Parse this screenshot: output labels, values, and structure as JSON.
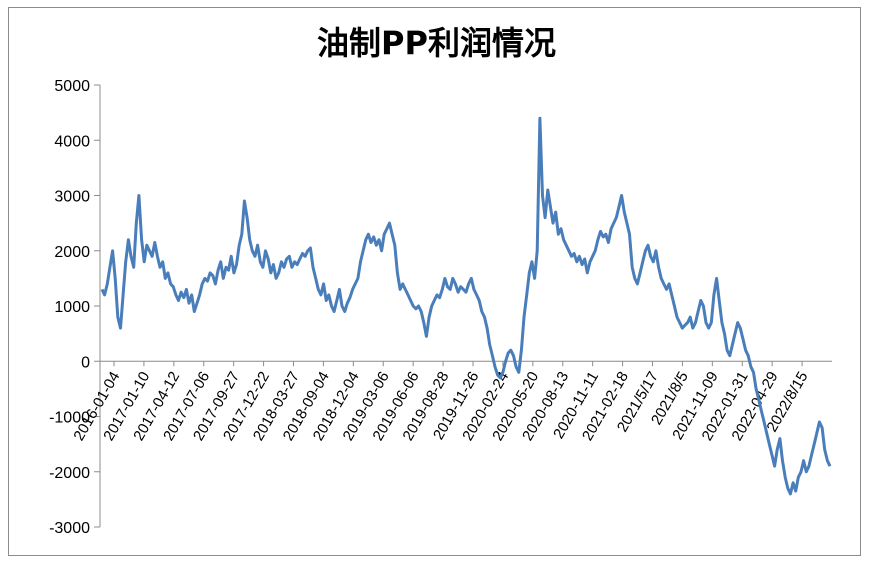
{
  "chart_data": {
    "type": "line",
    "title": "油制PP利润情况",
    "xlabel": "",
    "ylabel": "",
    "ylim": [
      -3000,
      5000
    ],
    "yticks": [
      5000,
      4000,
      3000,
      2000,
      1000,
      0,
      -1000,
      -2000,
      -3000
    ],
    "ytick_labels": [
      "5000",
      "4000",
      "3000",
      "2000",
      "1000",
      "0",
      "-1000",
      "-2000",
      "-3000"
    ],
    "x_tick_labels": [
      "2016-01-04",
      "2017-01-10",
      "2017-04-12",
      "2017-07-06",
      "2017-09-27",
      "2017-12-22",
      "2018-03-27",
      "2018-09-04",
      "2018-12-04",
      "2019-03-06",
      "2019-06-06",
      "2019-08-28",
      "2019-11-26",
      "2020-02-24",
      "2020-05-20",
      "2020-08-13",
      "2020-11-11",
      "2021-02-18",
      "2021/5/17",
      "2021/8/5",
      "2021-11-09",
      "2022-01-31",
      "2022-04-29",
      "2022/8/15"
    ],
    "grid": false,
    "legend": "none",
    "line_color": "#4a7ebb",
    "series": [
      {
        "values": [
          1300,
          1200,
          1400,
          1700,
          2000,
          1500,
          800,
          600,
          1200,
          1800,
          2200,
          1900,
          1700,
          2500,
          3000,
          2200,
          1800,
          2100,
          2000,
          1900,
          2150,
          1900,
          1700,
          1800,
          1500,
          1600,
          1400,
          1350,
          1200,
          1100,
          1250,
          1150,
          1300,
          1050,
          1200,
          900,
          1050,
          1200,
          1400,
          1500,
          1450,
          1600,
          1550,
          1400,
          1650,
          1800,
          1500,
          1700,
          1650,
          1900,
          1600,
          1750,
          2100,
          2300,
          2900,
          2600,
          2200,
          2000,
          1900,
          2100,
          1800,
          1700,
          2000,
          1850,
          1600,
          1750,
          1500,
          1600,
          1800,
          1700,
          1850,
          1900,
          1700,
          1800,
          1750,
          1850,
          1950,
          1900,
          2000,
          2050,
          1700,
          1500,
          1300,
          1200,
          1400,
          1100,
          1200,
          1000,
          900,
          1100,
          1300,
          1000,
          900,
          1050,
          1150,
          1300,
          1400,
          1500,
          1800,
          2000,
          2200,
          2300,
          2150,
          2250,
          2100,
          2200,
          2000,
          2300,
          2400,
          2500,
          2300,
          2100,
          1600,
          1300,
          1400,
          1300,
          1200,
          1100,
          1000,
          950,
          1000,
          900,
          700,
          450,
          800,
          1000,
          1100,
          1200,
          1150,
          1300,
          1500,
          1350,
          1300,
          1500,
          1400,
          1250,
          1350,
          1300,
          1250,
          1400,
          1500,
          1300,
          1200,
          1100,
          900,
          800,
          600,
          300,
          100,
          -100,
          -250,
          -300,
          -200,
          0,
          150,
          200,
          100,
          -100,
          -200,
          200,
          800,
          1200,
          1600,
          1800,
          1500,
          2000,
          4400,
          3000,
          2600,
          3100,
          2800,
          2500,
          2700,
          2300,
          2400,
          2200,
          2100,
          2000,
          1900,
          1950,
          1800,
          1900,
          1750,
          1850,
          1600,
          1800,
          1900,
          2000,
          2200,
          2350,
          2250,
          2300,
          2150,
          2400,
          2500,
          2600,
          2800,
          3000,
          2700,
          2500,
          2300,
          1700,
          1500,
          1400,
          1600,
          1800,
          2000,
          2100,
          1900,
          1800,
          2000,
          1700,
          1500,
          1400,
          1300,
          1400,
          1200,
          1000,
          800,
          700,
          600,
          650,
          700,
          800,
          600,
          700,
          900,
          1100,
          1000,
          700,
          600,
          700,
          1200,
          1500,
          1100,
          700,
          500,
          200,
          100,
          300,
          500,
          700,
          600,
          400,
          200,
          100,
          -100,
          -200,
          -500,
          -700,
          -900,
          -1100,
          -1300,
          -1500,
          -1700,
          -1900,
          -1600,
          -1400,
          -1800,
          -2100,
          -2300,
          -2400,
          -2200,
          -2350,
          -2100,
          -2000,
          -1800,
          -2000,
          -1900,
          -1700,
          -1500,
          -1300,
          -1100,
          -1200,
          -1600,
          -1800,
          -1900
        ]
      }
    ]
  }
}
